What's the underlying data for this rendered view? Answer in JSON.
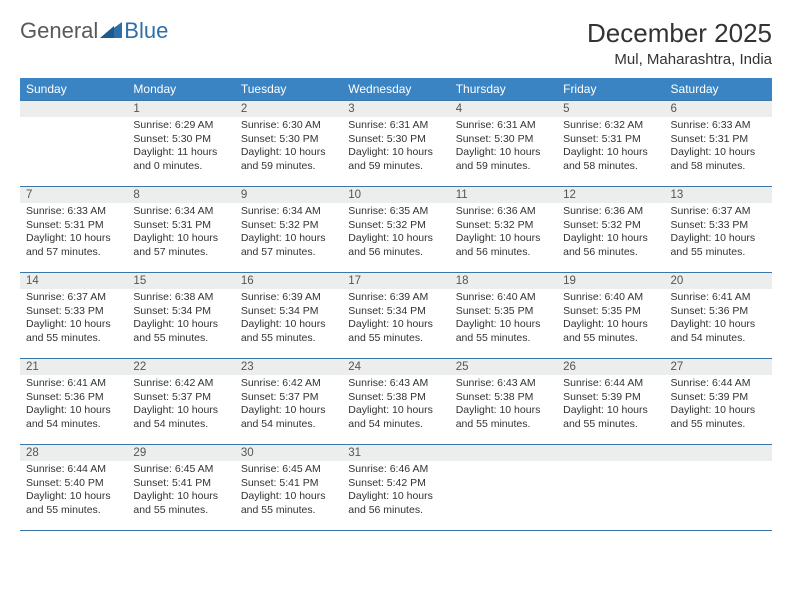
{
  "brand": {
    "part1": "General",
    "part2": "Blue"
  },
  "title": "December 2025",
  "location": "Mul, Maharashtra, India",
  "colors": {
    "header_bg": "#3a84c4",
    "header_text": "#ffffff",
    "rule": "#3a76a8",
    "daynum_bg": "#eceded",
    "brand_gray": "#595959",
    "brand_blue": "#2f6fa8"
  },
  "weekdays": [
    "Sunday",
    "Monday",
    "Tuesday",
    "Wednesday",
    "Thursday",
    "Friday",
    "Saturday"
  ],
  "weeks": [
    [
      {
        "n": "",
        "sr": "",
        "ss": "",
        "dl": ""
      },
      {
        "n": "1",
        "sr": "Sunrise: 6:29 AM",
        "ss": "Sunset: 5:30 PM",
        "dl": "Daylight: 11 hours and 0 minutes."
      },
      {
        "n": "2",
        "sr": "Sunrise: 6:30 AM",
        "ss": "Sunset: 5:30 PM",
        "dl": "Daylight: 10 hours and 59 minutes."
      },
      {
        "n": "3",
        "sr": "Sunrise: 6:31 AM",
        "ss": "Sunset: 5:30 PM",
        "dl": "Daylight: 10 hours and 59 minutes."
      },
      {
        "n": "4",
        "sr": "Sunrise: 6:31 AM",
        "ss": "Sunset: 5:30 PM",
        "dl": "Daylight: 10 hours and 59 minutes."
      },
      {
        "n": "5",
        "sr": "Sunrise: 6:32 AM",
        "ss": "Sunset: 5:31 PM",
        "dl": "Daylight: 10 hours and 58 minutes."
      },
      {
        "n": "6",
        "sr": "Sunrise: 6:33 AM",
        "ss": "Sunset: 5:31 PM",
        "dl": "Daylight: 10 hours and 58 minutes."
      }
    ],
    [
      {
        "n": "7",
        "sr": "Sunrise: 6:33 AM",
        "ss": "Sunset: 5:31 PM",
        "dl": "Daylight: 10 hours and 57 minutes."
      },
      {
        "n": "8",
        "sr": "Sunrise: 6:34 AM",
        "ss": "Sunset: 5:31 PM",
        "dl": "Daylight: 10 hours and 57 minutes."
      },
      {
        "n": "9",
        "sr": "Sunrise: 6:34 AM",
        "ss": "Sunset: 5:32 PM",
        "dl": "Daylight: 10 hours and 57 minutes."
      },
      {
        "n": "10",
        "sr": "Sunrise: 6:35 AM",
        "ss": "Sunset: 5:32 PM",
        "dl": "Daylight: 10 hours and 56 minutes."
      },
      {
        "n": "11",
        "sr": "Sunrise: 6:36 AM",
        "ss": "Sunset: 5:32 PM",
        "dl": "Daylight: 10 hours and 56 minutes."
      },
      {
        "n": "12",
        "sr": "Sunrise: 6:36 AM",
        "ss": "Sunset: 5:32 PM",
        "dl": "Daylight: 10 hours and 56 minutes."
      },
      {
        "n": "13",
        "sr": "Sunrise: 6:37 AM",
        "ss": "Sunset: 5:33 PM",
        "dl": "Daylight: 10 hours and 55 minutes."
      }
    ],
    [
      {
        "n": "14",
        "sr": "Sunrise: 6:37 AM",
        "ss": "Sunset: 5:33 PM",
        "dl": "Daylight: 10 hours and 55 minutes."
      },
      {
        "n": "15",
        "sr": "Sunrise: 6:38 AM",
        "ss": "Sunset: 5:34 PM",
        "dl": "Daylight: 10 hours and 55 minutes."
      },
      {
        "n": "16",
        "sr": "Sunrise: 6:39 AM",
        "ss": "Sunset: 5:34 PM",
        "dl": "Daylight: 10 hours and 55 minutes."
      },
      {
        "n": "17",
        "sr": "Sunrise: 6:39 AM",
        "ss": "Sunset: 5:34 PM",
        "dl": "Daylight: 10 hours and 55 minutes."
      },
      {
        "n": "18",
        "sr": "Sunrise: 6:40 AM",
        "ss": "Sunset: 5:35 PM",
        "dl": "Daylight: 10 hours and 55 minutes."
      },
      {
        "n": "19",
        "sr": "Sunrise: 6:40 AM",
        "ss": "Sunset: 5:35 PM",
        "dl": "Daylight: 10 hours and 55 minutes."
      },
      {
        "n": "20",
        "sr": "Sunrise: 6:41 AM",
        "ss": "Sunset: 5:36 PM",
        "dl": "Daylight: 10 hours and 54 minutes."
      }
    ],
    [
      {
        "n": "21",
        "sr": "Sunrise: 6:41 AM",
        "ss": "Sunset: 5:36 PM",
        "dl": "Daylight: 10 hours and 54 minutes."
      },
      {
        "n": "22",
        "sr": "Sunrise: 6:42 AM",
        "ss": "Sunset: 5:37 PM",
        "dl": "Daylight: 10 hours and 54 minutes."
      },
      {
        "n": "23",
        "sr": "Sunrise: 6:42 AM",
        "ss": "Sunset: 5:37 PM",
        "dl": "Daylight: 10 hours and 54 minutes."
      },
      {
        "n": "24",
        "sr": "Sunrise: 6:43 AM",
        "ss": "Sunset: 5:38 PM",
        "dl": "Daylight: 10 hours and 54 minutes."
      },
      {
        "n": "25",
        "sr": "Sunrise: 6:43 AM",
        "ss": "Sunset: 5:38 PM",
        "dl": "Daylight: 10 hours and 55 minutes."
      },
      {
        "n": "26",
        "sr": "Sunrise: 6:44 AM",
        "ss": "Sunset: 5:39 PM",
        "dl": "Daylight: 10 hours and 55 minutes."
      },
      {
        "n": "27",
        "sr": "Sunrise: 6:44 AM",
        "ss": "Sunset: 5:39 PM",
        "dl": "Daylight: 10 hours and 55 minutes."
      }
    ],
    [
      {
        "n": "28",
        "sr": "Sunrise: 6:44 AM",
        "ss": "Sunset: 5:40 PM",
        "dl": "Daylight: 10 hours and 55 minutes."
      },
      {
        "n": "29",
        "sr": "Sunrise: 6:45 AM",
        "ss": "Sunset: 5:41 PM",
        "dl": "Daylight: 10 hours and 55 minutes."
      },
      {
        "n": "30",
        "sr": "Sunrise: 6:45 AM",
        "ss": "Sunset: 5:41 PM",
        "dl": "Daylight: 10 hours and 55 minutes."
      },
      {
        "n": "31",
        "sr": "Sunrise: 6:46 AM",
        "ss": "Sunset: 5:42 PM",
        "dl": "Daylight: 10 hours and 56 minutes."
      },
      {
        "n": "",
        "sr": "",
        "ss": "",
        "dl": ""
      },
      {
        "n": "",
        "sr": "",
        "ss": "",
        "dl": ""
      },
      {
        "n": "",
        "sr": "",
        "ss": "",
        "dl": ""
      }
    ]
  ]
}
